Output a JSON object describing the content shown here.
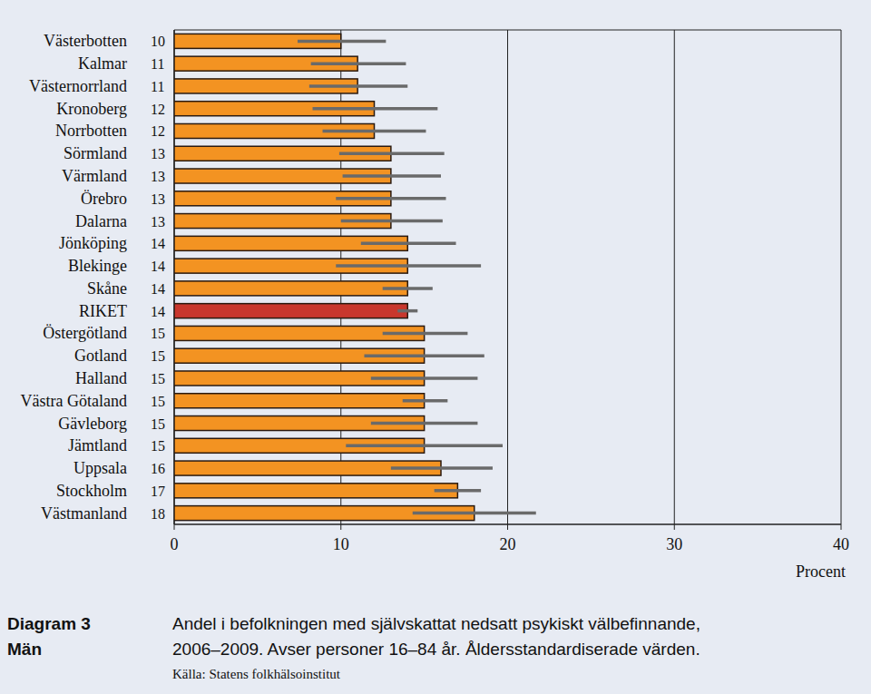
{
  "chart_data": {
    "type": "bar",
    "orientation": "horizontal",
    "title": "Andel i befolkningen med självskattat nedsatt psykiskt välbefinnande,",
    "subtitle": "2006–2009. Avser personer 16–84 år. Åldersstandardiserade värden.",
    "annotations": [
      "Diagram 3",
      "Män"
    ],
    "source": "Källa: Statens folkhälsoinstitut",
    "x_label": "Procent",
    "categories": [
      "Västerbotten",
      "Kalmar",
      "Västernorrland",
      "Kronoberg",
      "Norrbotten",
      "Sörmland",
      "Värmland",
      "Örebro",
      "Dalarna",
      "Jönköping",
      "Blekinge",
      "Skåne",
      "RIKET",
      "Östergötland",
      "Gotland",
      "Halland",
      "Västra Götaland",
      "Gävleborg",
      "Jämtland",
      "Uppsala",
      "Stockholm",
      "Västmanland"
    ],
    "values": [
      10,
      11,
      11,
      12,
      12,
      13,
      13,
      13,
      13,
      14,
      14,
      14,
      14,
      15,
      15,
      15,
      15,
      15,
      15,
      16,
      17,
      18
    ],
    "ci_low": [
      7.4,
      8.2,
      8.1,
      8.3,
      8.9,
      9.9,
      10.1,
      9.7,
      10.0,
      11.2,
      9.7,
      12.5,
      13.4,
      12.5,
      11.4,
      11.8,
      13.7,
      11.8,
      10.3,
      13.0,
      15.6,
      14.3
    ],
    "ci_high": [
      12.7,
      13.9,
      14.0,
      15.8,
      15.1,
      16.2,
      16.0,
      16.3,
      16.1,
      16.9,
      18.4,
      15.5,
      14.6,
      17.6,
      18.6,
      18.2,
      16.4,
      18.2,
      19.7,
      19.1,
      18.4,
      21.7
    ],
    "colors": [
      "#f39322",
      "#f39322",
      "#f39322",
      "#f39322",
      "#f39322",
      "#f39322",
      "#f39322",
      "#f39322",
      "#f39322",
      "#f39322",
      "#f39322",
      "#f39322",
      "#c8372d",
      "#f39322",
      "#f39322",
      "#f39322",
      "#f39322",
      "#f39322",
      "#f39322",
      "#f39322",
      "#f39322",
      "#f39322"
    ],
    "xlim": [
      0,
      40
    ],
    "xticks": [
      0,
      10,
      20,
      30,
      40
    ],
    "grid": true,
    "data_labels": true
  }
}
